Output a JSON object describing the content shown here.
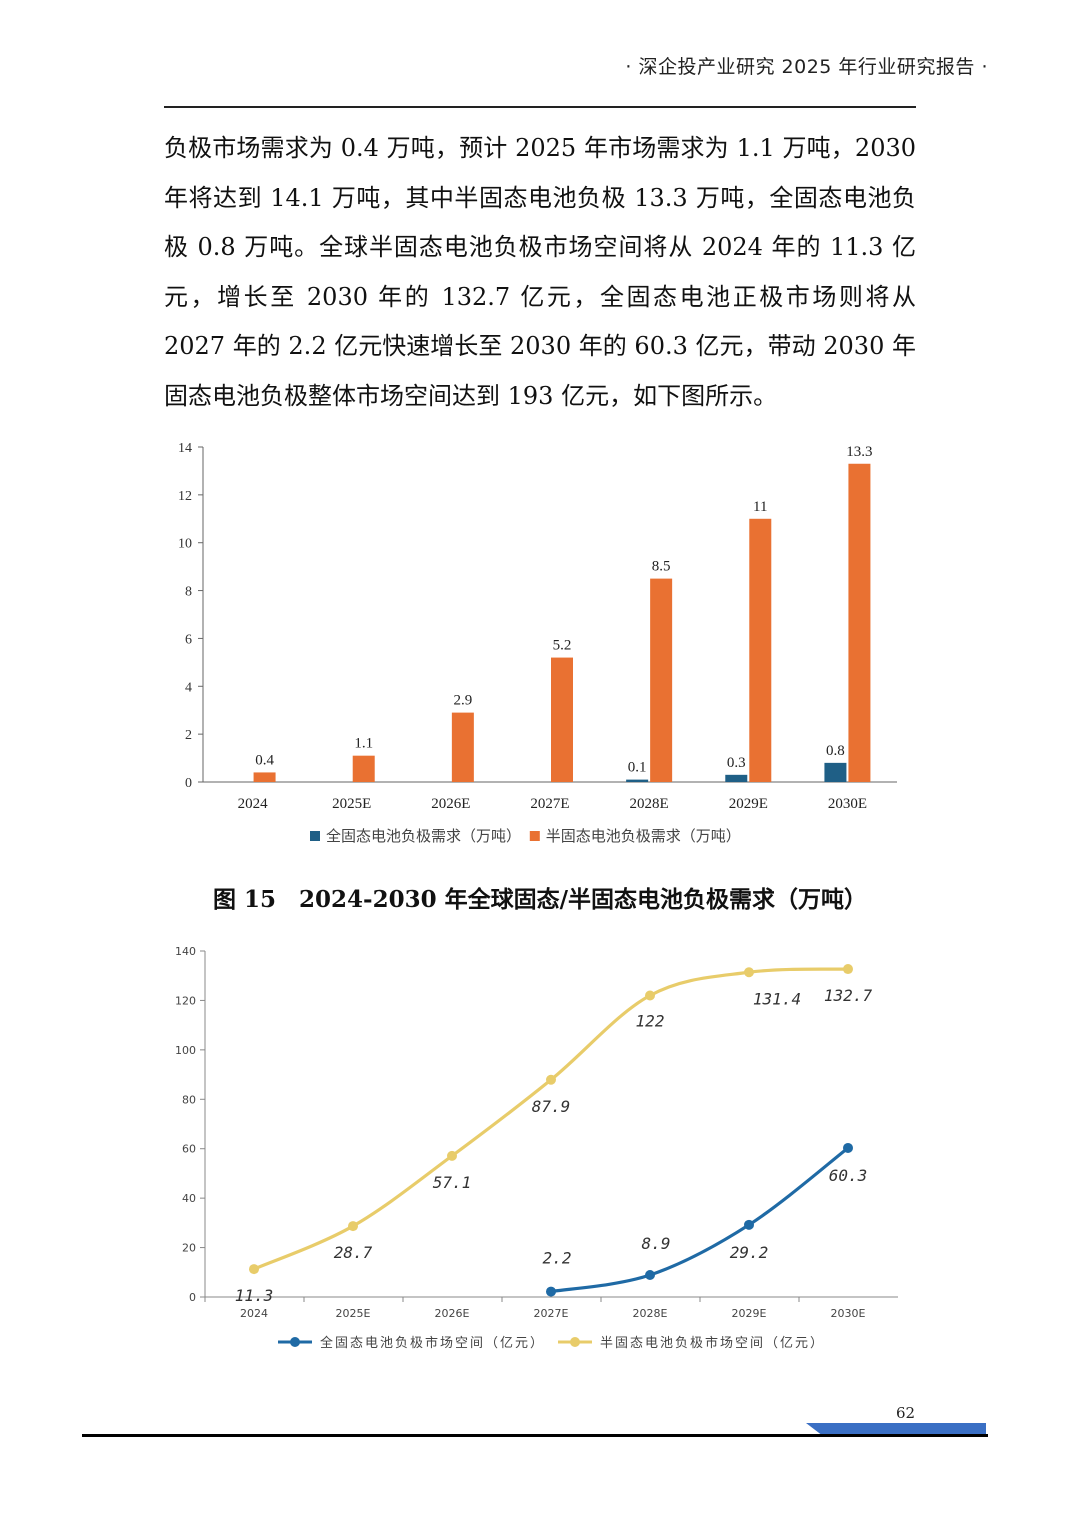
{
  "header": {
    "title": "· 深企投产业研究 2025 年行业研究报告 ·"
  },
  "body": {
    "paragraph": "负极市场需求为 0.4 万吨，预计 2025 年市场需求为 1.1 万吨，2030 年将达到 14.1 万吨，其中半固态电池负极 13.3 万吨，全固态电池负极 0.8 万吨。全球半固态电池负极市场空间将从 2024 年的 11.3 亿元，增长至 2030 年的 132.7 亿元，全固态电池正极市场则将从 2027 年的 2.2 亿元快速增长至 2030 年的 60.3 亿元，带动 2030 年固态电池负极整体市场空间达到 193 亿元，如下图所示。"
  },
  "figure_caption": "图 15　2024-2030 年全球固态/半固态电池负极需求（万吨）",
  "colors": {
    "all_solid_bar": "#1f5f86",
    "semi_solid_bar": "#e97132",
    "all_solid_line": "#1f6aa5",
    "semi_solid_line": "#e8cc6a"
  },
  "chart_data": [
    {
      "type": "bar",
      "categories": [
        "2024",
        "2025E",
        "2026E",
        "2027E",
        "2028E",
        "2029E",
        "2030E"
      ],
      "series": [
        {
          "name": "全固态电池负极需求（万吨）",
          "values": [
            null,
            null,
            null,
            null,
            0.1,
            0.3,
            0.8
          ]
        },
        {
          "name": "半固态电池负极需求（万吨）",
          "values": [
            0.4,
            1.1,
            2.9,
            5.2,
            8.5,
            11,
            13.3
          ]
        }
      ],
      "yticks": [
        "0",
        "2",
        "4",
        "6",
        "8",
        "10",
        "12",
        "14"
      ],
      "ylim": [
        0,
        14
      ],
      "grid": false,
      "legend": "bottom"
    },
    {
      "type": "line",
      "categories": [
        "2024",
        "2025E",
        "2026E",
        "2027E",
        "2028E",
        "2029E",
        "2030E"
      ],
      "series": [
        {
          "name": "全固态电池负极市场空间（亿元）",
          "values": [
            null,
            null,
            null,
            2.2,
            8.9,
            29.2,
            60.3
          ]
        },
        {
          "name": "半固态电池负极市场空间（亿元）",
          "values": [
            11.3,
            28.7,
            57.1,
            87.9,
            122,
            131.4,
            132.7
          ]
        }
      ],
      "yticks": [
        "0",
        "20",
        "40",
        "60",
        "80",
        "100",
        "120",
        "140"
      ],
      "ylim": [
        0,
        140
      ],
      "grid": false,
      "legend": "bottom"
    }
  ],
  "footer": {
    "page_number": "62"
  }
}
